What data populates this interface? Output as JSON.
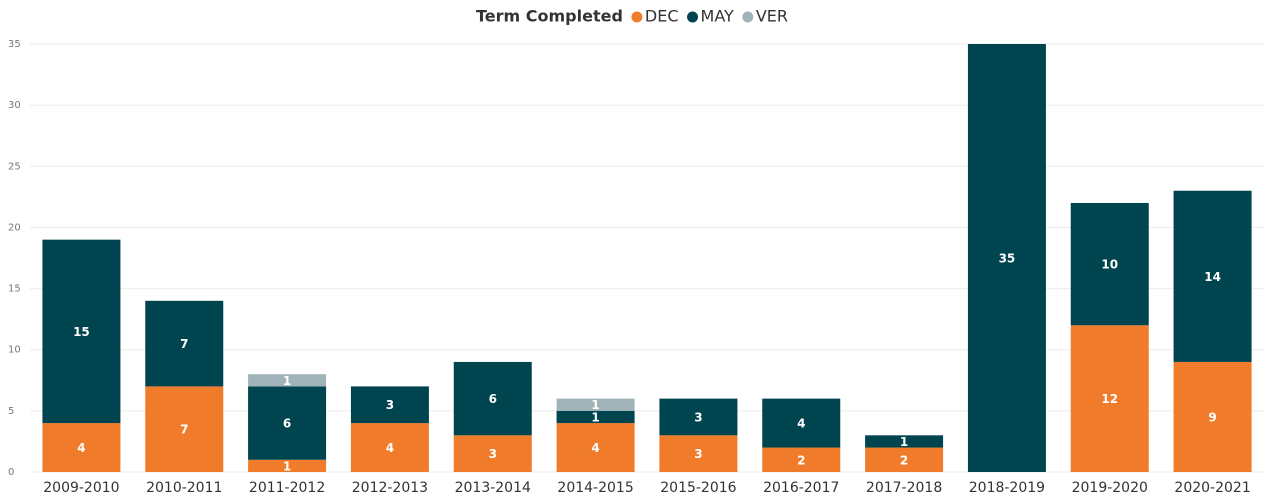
{
  "chart_data": {
    "type": "stacked_bar",
    "legend_title": "Term Completed",
    "legend": "top",
    "categories": [
      "2009-2010",
      "2010-2011",
      "2011-2012",
      "2012-2013",
      "2013-2014",
      "2014-2015",
      "2015-2016",
      "2016-2017",
      "2017-2018",
      "2018-2019",
      "2019-2020",
      "2020-2021"
    ],
    "series": [
      {
        "name": "DEC",
        "color": "#f07b2a",
        "values": [
          4,
          7,
          1,
          4,
          3,
          4,
          3,
          2,
          2,
          null,
          12,
          9
        ]
      },
      {
        "name": "MAY",
        "color": "#004450",
        "values": [
          15,
          7,
          6,
          3,
          6,
          1,
          3,
          4,
          1,
          35,
          10,
          14
        ]
      },
      {
        "name": "VER",
        "color": "#9fb3b8",
        "values": [
          null,
          null,
          1,
          null,
          null,
          1,
          null,
          null,
          null,
          null,
          null,
          null
        ]
      }
    ],
    "ylim": [
      0,
      35
    ],
    "yticks": [
      0,
      5,
      10,
      15,
      20,
      25,
      30,
      35
    ],
    "grid": true
  }
}
